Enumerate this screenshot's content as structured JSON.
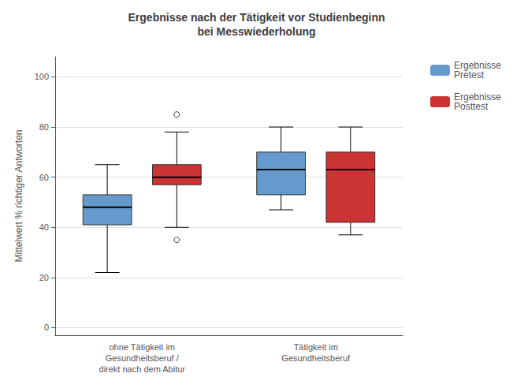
{
  "chart_data": {
    "type": "boxplot",
    "title": "Ergebnisse nach der Tätigkeit vor Studienbeginn\nbei Messwiederholung",
    "ylabel": "Mittelwert % richtiger Antworten",
    "categories": [
      "ohne Tätigkeit im\nGesundheitsberuf /\ndirekt nach dem Abitur",
      "Tätigkeit im\nGesundheitsberuf"
    ],
    "series": [
      {
        "name": "Ergebnisse\nPretest",
        "color": "#6699cc",
        "values": [
          [
            22,
            41,
            48,
            53,
            65
          ],
          [
            47,
            53,
            63,
            70,
            80
          ]
        ],
        "outliers": [
          [],
          []
        ]
      },
      {
        "name": "Ergebnisse\nPosttest",
        "color": "#cc3333",
        "values": [
          [
            40,
            57,
            60,
            65,
            78
          ],
          [
            37,
            42,
            63,
            70,
            80
          ]
        ],
        "outliers": [
          [
            35,
            85
          ],
          []
        ]
      }
    ],
    "ylim": [
      -3,
      108
    ],
    "yticks": [
      0,
      20,
      40,
      60,
      80,
      100
    ],
    "grid": true,
    "legend": "right"
  }
}
